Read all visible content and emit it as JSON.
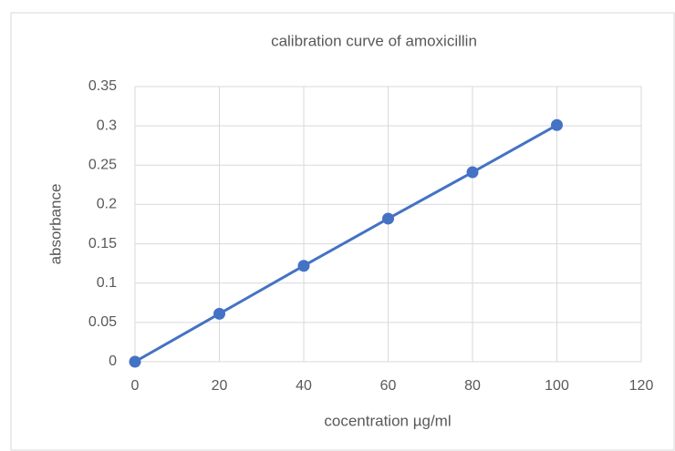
{
  "chart_data": {
    "type": "line",
    "title": "calibration curve of amoxicillin",
    "x_label": "cocentration µg/ml",
    "y_label": "absorbance",
    "x": [
      0,
      20,
      40,
      60,
      80,
      100
    ],
    "series": [
      {
        "name": "absorbance",
        "color": "#4472c4",
        "values": [
          0,
          0.061,
          0.122,
          0.182,
          0.241,
          0.301
        ]
      }
    ],
    "xlim": [
      0,
      120
    ],
    "xticks": [
      0,
      20,
      40,
      60,
      80,
      100,
      120
    ],
    "ylim": [
      0,
      0.35
    ],
    "yticks": [
      0,
      0.05,
      0.1,
      0.15,
      0.2,
      0.25,
      0.3,
      0.35
    ],
    "grid": true
  }
}
